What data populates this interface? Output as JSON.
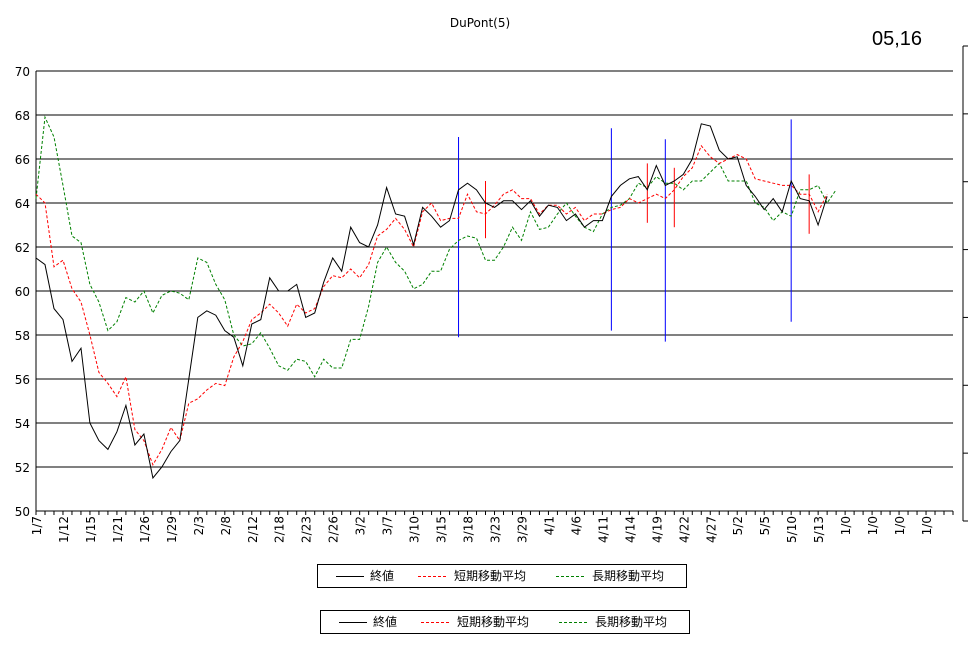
{
  "title": "DuPont(5)",
  "date_label": "05,16",
  "legends": [
    {
      "items": [
        {
          "label": "終値",
          "series": 0
        },
        {
          "label": "短期移動平均",
          "series": 1
        },
        {
          "label": "長期移動平均",
          "series": 2
        }
      ]
    },
    {
      "items": [
        {
          "label": "終値",
          "series": 0
        },
        {
          "label": "短期移動平均",
          "series": 1
        },
        {
          "label": "長期移動平均",
          "series": 2
        }
      ]
    }
  ],
  "chart_data": {
    "type": "line",
    "ylim": [
      50,
      70
    ],
    "yticks": [
      50,
      52,
      54,
      56,
      58,
      60,
      62,
      64,
      66,
      68,
      70
    ],
    "grid": true,
    "x_tick_labels": [
      "1/7",
      "1/12",
      "1/15",
      "1/21",
      "1/26",
      "1/29",
      "2/3",
      "2/8",
      "2/12",
      "2/18",
      "2/23",
      "2/26",
      "3/2",
      "3/7",
      "3/10",
      "3/15",
      "3/18",
      "3/23",
      "3/29",
      "4/1",
      "4/6",
      "4/11",
      "4/14",
      "4/19",
      "4/22",
      "4/27",
      "5/2",
      "5/5",
      "5/10",
      "5/13",
      "1/0",
      "1/0",
      "1/0",
      "1/0"
    ],
    "series": [
      {
        "name": "終値",
        "color": "#000000",
        "style": "solid",
        "values": [
          61.5,
          61.2,
          59.2,
          58.7,
          56.8,
          57.4,
          54.0,
          53.2,
          52.8,
          53.6,
          54.8,
          53.0,
          53.5,
          51.5,
          52.0,
          52.7,
          53.2,
          56.0,
          58.8,
          59.1,
          58.9,
          58.2,
          57.9,
          56.6,
          58.5,
          58.7,
          60.6,
          60.0,
          60.0,
          60.3,
          58.8,
          59.0,
          60.4,
          61.5,
          60.9,
          62.9,
          62.2,
          62.0,
          63.0,
          64.7,
          63.5,
          63.4,
          62.1,
          63.8,
          63.4,
          62.9,
          63.2,
          64.6,
          64.9,
          64.6,
          64.0,
          63.8,
          64.1,
          64.1,
          63.7,
          64.1,
          63.4,
          63.9,
          63.8,
          63.2,
          63.5,
          62.9,
          63.2,
          63.2,
          64.3,
          64.8,
          65.1,
          65.2,
          64.6,
          65.7,
          64.8,
          65.0,
          65.3,
          66.0,
          67.6,
          67.5,
          66.4,
          66.0,
          66.1,
          64.8,
          64.3,
          63.7,
          64.2,
          63.6,
          65.0,
          64.2,
          64.1,
          63.0,
          64.3
        ]
      },
      {
        "name": "短期移動平均",
        "color": "#ff0000",
        "style": "dashed",
        "values": [
          64.4,
          64.0,
          61.1,
          61.4,
          60.1,
          59.5,
          58.0,
          56.3,
          55.8,
          55.2,
          56.1,
          53.7,
          53.2,
          52.1,
          52.8,
          53.8,
          53.2,
          54.9,
          55.1,
          55.5,
          55.8,
          55.7,
          57.0,
          57.7,
          58.7,
          59.0,
          59.4,
          59.0,
          58.4,
          59.4,
          59.0,
          59.2,
          60.2,
          60.7,
          60.6,
          61.0,
          60.6,
          61.2,
          62.5,
          62.8,
          63.3,
          62.8,
          62.0,
          63.6,
          64.0,
          63.2,
          63.3,
          63.3,
          64.4,
          63.6,
          63.5,
          63.9,
          64.4,
          64.6,
          64.2,
          64.2,
          63.5,
          63.9,
          63.9,
          63.5,
          63.8,
          63.2,
          63.5,
          63.5,
          63.7,
          63.8,
          64.2,
          64.0,
          64.2,
          64.4,
          64.2,
          64.6,
          65.2,
          65.6,
          66.6,
          66.1,
          65.8,
          66.0,
          66.2,
          66.0,
          65.1,
          65.0,
          64.9,
          64.8,
          64.8,
          64.4,
          64.4,
          63.6,
          64.4
        ]
      },
      {
        "name": "長期移動平均",
        "color": "#008000",
        "style": "dashed",
        "values": [
          64.2,
          67.9,
          67.0,
          64.8,
          62.5,
          62.2,
          60.3,
          59.5,
          58.2,
          58.6,
          59.7,
          59.5,
          60.0,
          59.0,
          59.8,
          60.0,
          59.9,
          59.6,
          61.5,
          61.3,
          60.3,
          59.6,
          58.0,
          57.5,
          57.6,
          58.1,
          57.4,
          56.6,
          56.4,
          56.9,
          56.8,
          56.1,
          56.9,
          56.5,
          56.5,
          57.8,
          57.8,
          59.3,
          61.3,
          62.0,
          61.3,
          60.9,
          60.1,
          60.3,
          60.9,
          60.9,
          61.9,
          62.3,
          62.5,
          62.4,
          61.4,
          61.4,
          62.0,
          62.9,
          62.3,
          63.6,
          62.8,
          62.9,
          63.5,
          64.0,
          63.4,
          62.9,
          62.7,
          63.5,
          63.8,
          63.9,
          64.2,
          64.9,
          64.7,
          65.2,
          64.9,
          64.9,
          64.6,
          65.0,
          65.0,
          65.4,
          65.8,
          65.0,
          65.0,
          65.0,
          64.0,
          63.8,
          63.2,
          63.6,
          63.4,
          64.6,
          64.6,
          64.8,
          64.0,
          64.6
        ]
      }
    ],
    "vertical_markers": [
      {
        "index": 47,
        "color": "#0000ff",
        "top": 67.0,
        "bottom": 57.9
      },
      {
        "index": 50,
        "color": "#ff0000",
        "top": 65.0,
        "bottom": 62.4
      },
      {
        "index": 64,
        "color": "#0000ff",
        "top": 67.4,
        "bottom": 58.2
      },
      {
        "index": 68,
        "color": "#ff0000",
        "top": 65.8,
        "bottom": 63.1
      },
      {
        "index": 70,
        "color": "#0000ff",
        "top": 66.9,
        "bottom": 57.7
      },
      {
        "index": 71,
        "color": "#ff0000",
        "top": 65.6,
        "bottom": 62.9
      },
      {
        "index": 84,
        "color": "#0000ff",
        "top": 67.8,
        "bottom": 58.6
      },
      {
        "index": 86,
        "color": "#ff0000",
        "top": 65.3,
        "bottom": 62.6
      }
    ]
  }
}
